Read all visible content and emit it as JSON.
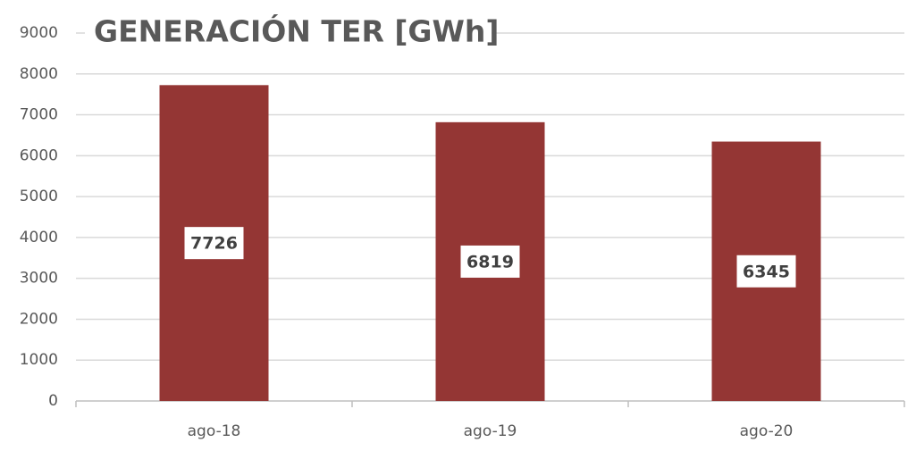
{
  "chart_data": {
    "type": "bar",
    "title": "GENERACIÓN TER [GWh]",
    "categories": [
      "ago-18",
      "ago-19",
      "ago-20"
    ],
    "values": [
      7726,
      6819,
      6345
    ],
    "color": "#943634",
    "ylim": [
      0,
      9000
    ],
    "yticks": [
      0,
      1000,
      2000,
      3000,
      4000,
      5000,
      6000,
      7000,
      8000,
      9000
    ],
    "grid": true
  }
}
